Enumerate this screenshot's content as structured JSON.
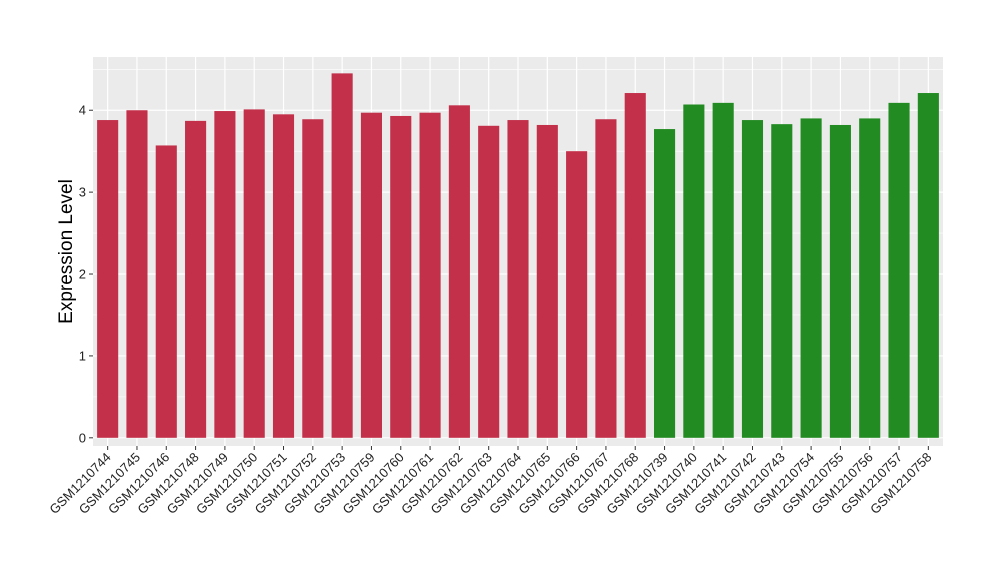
{
  "chart_data": {
    "type": "bar",
    "title": "",
    "xlabel": "",
    "ylabel": "Expression Level",
    "ylim": [
      -0.1,
      4.65
    ],
    "yticks": [
      0,
      1,
      2,
      3,
      4
    ],
    "grid": true,
    "legend": "none",
    "colors": {
      "group1": "#c3304a",
      "group2": "#228b22",
      "panel": "#ebebeb",
      "grid": "#ffffff"
    },
    "categories": [
      "GSM1210744",
      "GSM1210745",
      "GSM1210746",
      "GSM1210748",
      "GSM1210749",
      "GSM1210750",
      "GSM1210751",
      "GSM1210752",
      "GSM1210753",
      "GSM1210759",
      "GSM1210760",
      "GSM1210761",
      "GSM1210762",
      "GSM1210763",
      "GSM1210764",
      "GSM1210765",
      "GSM1210766",
      "GSM1210767",
      "GSM1210768",
      "GSM1210739",
      "GSM1210740",
      "GSM1210741",
      "GSM1210742",
      "GSM1210743",
      "GSM1210754",
      "GSM1210755",
      "GSM1210756",
      "GSM1210757",
      "GSM1210758"
    ],
    "values": [
      3.88,
      4.0,
      3.57,
      3.87,
      3.99,
      4.01,
      3.95,
      3.89,
      4.45,
      3.97,
      3.93,
      3.97,
      4.06,
      3.81,
      3.88,
      3.82,
      3.5,
      3.89,
      4.21,
      3.77,
      4.07,
      4.09,
      3.88,
      3.83,
      3.9,
      3.82,
      3.9,
      4.09,
      4.21
    ],
    "groups": [
      "group1",
      "group1",
      "group1",
      "group1",
      "group1",
      "group1",
      "group1",
      "group1",
      "group1",
      "group1",
      "group1",
      "group1",
      "group1",
      "group1",
      "group1",
      "group1",
      "group1",
      "group1",
      "group1",
      "group2",
      "group2",
      "group2",
      "group2",
      "group2",
      "group2",
      "group2",
      "group2",
      "group2",
      "group2"
    ]
  }
}
